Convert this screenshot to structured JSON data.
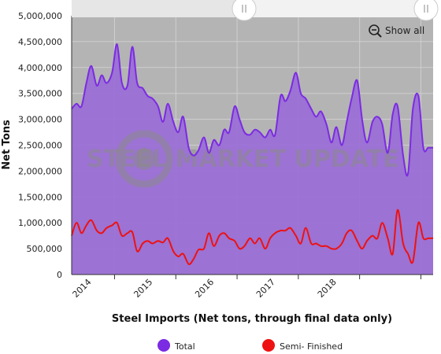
{
  "chart_data": {
    "type": "area",
    "title": "",
    "xlabel": "Steel Imports (Net tons, through final data only)",
    "ylabel": "Net Tons",
    "ylim": [
      0,
      5000000
    ],
    "yticks": [
      0,
      500000,
      1000000,
      1500000,
      2000000,
      2500000,
      3000000,
      3500000,
      4000000,
      4500000,
      5000000
    ],
    "ytick_labels": [
      "0",
      "500,000",
      "1,000,000",
      "1,500,000",
      "2,000,000",
      "2,500,000",
      "3,000,000",
      "3,500,000",
      "4,000,000",
      "4,500,000",
      "5,000,000"
    ],
    "xlim": [
      2013.3,
      2019.2
    ],
    "xticks": [
      2014.0,
      2015.0,
      2016.0,
      2017.0,
      2018.0,
      2019.0
    ],
    "xtick_labels": [
      "2014",
      "2015",
      "2016",
      "2017",
      "2018",
      ""
    ],
    "grid": true,
    "legend_position": "bottom",
    "series": [
      {
        "name": "Total",
        "color": "#7b2be2",
        "fill": "#9b6fd6",
        "x": [
          2013.3,
          2013.38,
          2013.46,
          2013.54,
          2013.62,
          2013.71,
          2013.79,
          2013.87,
          2013.96,
          2014.04,
          2014.12,
          2014.21,
          2014.29,
          2014.37,
          2014.46,
          2014.54,
          2014.62,
          2014.71,
          2014.79,
          2014.87,
          2014.96,
          2015.04,
          2015.12,
          2015.21,
          2015.29,
          2015.37,
          2015.46,
          2015.54,
          2015.62,
          2015.71,
          2015.79,
          2015.87,
          2015.96,
          2016.04,
          2016.12,
          2016.21,
          2016.29,
          2016.37,
          2016.46,
          2016.54,
          2016.62,
          2016.71,
          2016.79,
          2016.87,
          2016.96,
          2017.04,
          2017.12,
          2017.21,
          2017.29,
          2017.37,
          2017.46,
          2017.54,
          2017.62,
          2017.71,
          2017.79,
          2017.87,
          2017.96,
          2018.04,
          2018.12,
          2018.21,
          2018.29,
          2018.37,
          2018.46,
          2018.54,
          2018.62,
          2018.71,
          2018.79,
          2018.87,
          2018.96,
          2019.04,
          2019.12,
          2019.2
        ],
        "values": [
          3200000,
          3300000,
          3250000,
          3700000,
          4030000,
          3650000,
          3850000,
          3700000,
          3900000,
          4450000,
          3700000,
          3650000,
          4400000,
          3700000,
          3600000,
          3450000,
          3400000,
          3250000,
          2950000,
          3300000,
          2950000,
          2750000,
          3050000,
          2450000,
          2300000,
          2400000,
          2650000,
          2350000,
          2600000,
          2500000,
          2800000,
          2750000,
          3250000,
          3000000,
          2750000,
          2700000,
          2800000,
          2750000,
          2650000,
          2800000,
          2700000,
          3450000,
          3350000,
          3550000,
          3900000,
          3500000,
          3400000,
          3200000,
          3050000,
          3150000,
          2900000,
          2550000,
          2850000,
          2500000,
          2950000,
          3400000,
          3750000,
          3000000,
          2550000,
          2950000,
          3050000,
          2900000,
          2350000,
          3100000,
          3250000,
          2300000,
          1950000,
          3200000,
          3450000,
          2450000,
          2450000,
          2450000
        ]
      },
      {
        "name": "Semi- Finished",
        "color": "#ee1111",
        "x": [
          2013.3,
          2013.38,
          2013.46,
          2013.54,
          2013.62,
          2013.71,
          2013.79,
          2013.87,
          2013.96,
          2014.04,
          2014.12,
          2014.21,
          2014.29,
          2014.37,
          2014.46,
          2014.54,
          2014.62,
          2014.71,
          2014.79,
          2014.87,
          2014.96,
          2015.04,
          2015.12,
          2015.21,
          2015.29,
          2015.37,
          2015.46,
          2015.54,
          2015.62,
          2015.71,
          2015.79,
          2015.87,
          2015.96,
          2016.04,
          2016.12,
          2016.21,
          2016.29,
          2016.37,
          2016.46,
          2016.54,
          2016.62,
          2016.71,
          2016.79,
          2016.87,
          2016.96,
          2017.04,
          2017.12,
          2017.21,
          2017.29,
          2017.37,
          2017.46,
          2017.54,
          2017.62,
          2017.71,
          2017.79,
          2017.87,
          2017.96,
          2018.04,
          2018.12,
          2018.21,
          2018.29,
          2018.37,
          2018.46,
          2018.54,
          2018.62,
          2018.71,
          2018.79,
          2018.87,
          2018.96,
          2019.04,
          2019.12,
          2019.2
        ],
        "values": [
          750000,
          1000000,
          800000,
          950000,
          1050000,
          850000,
          800000,
          900000,
          950000,
          1000000,
          750000,
          800000,
          820000,
          450000,
          600000,
          650000,
          600000,
          650000,
          620000,
          700000,
          450000,
          350000,
          400000,
          200000,
          300000,
          480000,
          500000,
          800000,
          550000,
          750000,
          800000,
          700000,
          650000,
          500000,
          550000,
          700000,
          600000,
          700000,
          500000,
          700000,
          800000,
          850000,
          850000,
          900000,
          750000,
          600000,
          900000,
          600000,
          600000,
          550000,
          550000,
          500000,
          500000,
          600000,
          800000,
          850000,
          650000,
          500000,
          650000,
          750000,
          700000,
          1000000,
          700000,
          400000,
          1250000,
          600000,
          400000,
          250000,
          1000000,
          700000,
          700000,
          700000
        ]
      }
    ]
  },
  "watermark": {
    "text": "STEEL MARKET UPDATE"
  },
  "controls": {
    "show_all_label": "Show all"
  },
  "legend": {
    "items": [
      {
        "label": "Total",
        "color": "#7b2be2"
      },
      {
        "label": "Semi- Finished",
        "color": "#ee1111"
      }
    ]
  }
}
